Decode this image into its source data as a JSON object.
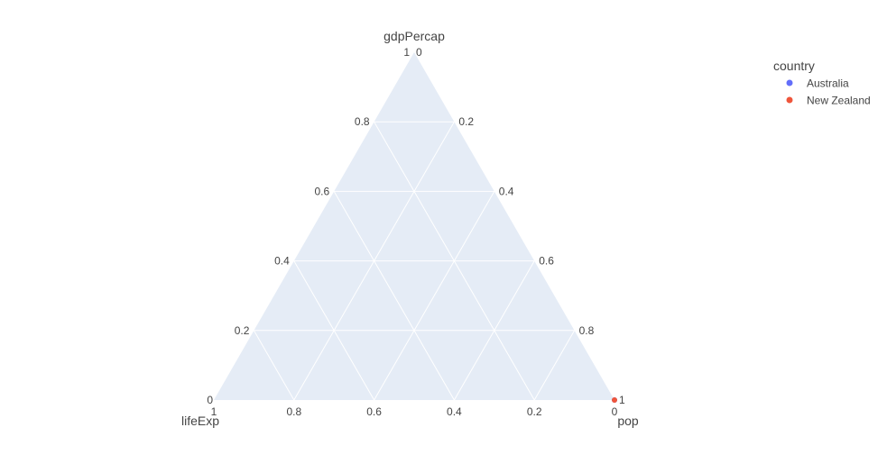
{
  "chart_data": {
    "type": "scatter",
    "subtype": "ternary",
    "axes": {
      "a": {
        "title": "gdpPercap",
        "ticks": [
          "0.2",
          "0.4",
          "0.6",
          "0.8",
          "1"
        ]
      },
      "b": {
        "title": "lifeExp",
        "ticks": [
          "0.2",
          "0.4",
          "0.6",
          "0.8",
          "1"
        ]
      },
      "c": {
        "title": "pop",
        "ticks": [
          "0.2",
          "0.4",
          "0.6",
          "0.8",
          "1"
        ]
      },
      "a_zero": "0",
      "b_zero": "0",
      "c_zero": "0"
    },
    "grid": true,
    "legend": {
      "title": "country",
      "placement": "top-right",
      "entries": [
        {
          "name": "Australia",
          "color": "#636efa"
        },
        {
          "name": "New Zealand",
          "color": "#ef553b"
        }
      ]
    },
    "series": [
      {
        "name": "Australia",
        "color": "#636efa",
        "points": [
          {
            "a": 0.0,
            "b": 0.0,
            "c": 1.0
          }
        ]
      },
      {
        "name": "New Zealand",
        "color": "#ef553b",
        "points": [
          {
            "a": 0.0,
            "b": 0.0,
            "c": 1.0
          }
        ]
      }
    ]
  },
  "colors": {
    "plot_background": "#e5ecf6",
    "grid": "#ffffff",
    "text": "#444444"
  }
}
